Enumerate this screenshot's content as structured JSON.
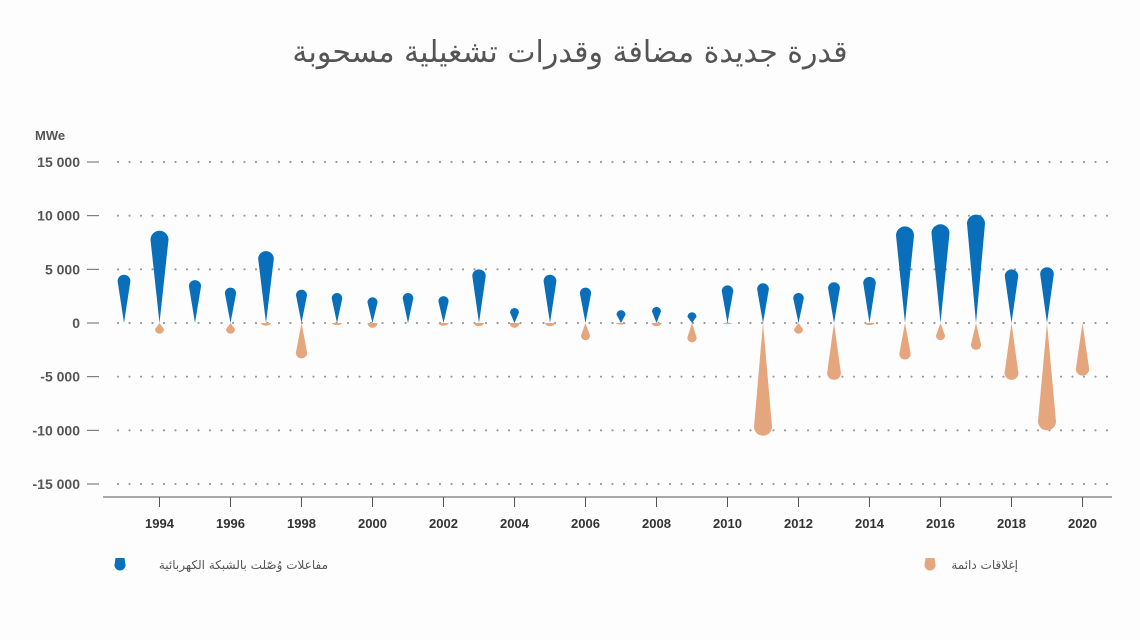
{
  "chart_data": {
    "type": "bar",
    "title": "قدرة جديدة مضافة وقدرات تشغيلية مسحوبة",
    "ylabel": "MWe",
    "ylim": [
      -15000,
      15000
    ],
    "yticks": [
      15000,
      10000,
      5000,
      0,
      -5000,
      -10000,
      -15000
    ],
    "ytick_labels": [
      "15 000",
      "10 000",
      "5 000",
      "0",
      "-5 000",
      "-10 000",
      "-15 000"
    ],
    "grid": true,
    "x": [
      1993,
      1994,
      1995,
      1996,
      1997,
      1998,
      1999,
      2000,
      2001,
      2002,
      2003,
      2004,
      2005,
      2006,
      2007,
      2008,
      2009,
      2010,
      2011,
      2012,
      2013,
      2014,
      2015,
      2016,
      2017,
      2018,
      2019,
      2020
    ],
    "xtick_labels": [
      "1994",
      "1996",
      "1998",
      "2000",
      "2002",
      "2004",
      "2006",
      "2008",
      "2010",
      "2012",
      "2014",
      "2016",
      "2018",
      "2020"
    ],
    "series": [
      {
        "name": "مفاعلات وُصّلت بالشبكة الكهربائية",
        "color": "#0a6fba",
        "values": [
          4500,
          8600,
          4000,
          3300,
          6700,
          3100,
          2800,
          2400,
          2800,
          2500,
          5000,
          1400,
          4500,
          3300,
          1200,
          1500,
          1000,
          3500,
          3700,
          2800,
          3800,
          4300,
          9000,
          9200,
          10100,
          5000,
          5200,
          0
        ]
      },
      {
        "name": "إغلاقات دائمة",
        "color": "#e5a57d",
        "values": [
          0,
          -1000,
          0,
          -1000,
          -500,
          -3300,
          -400,
          -900,
          0,
          -500,
          -600,
          -900,
          -600,
          -1600,
          -300,
          -600,
          -1800,
          -200,
          -10500,
          -1000,
          -5300,
          -400,
          -3400,
          -1600,
          -2500,
          -5300,
          -10000,
          -4900
        ]
      }
    ],
    "legend": "bottom"
  }
}
